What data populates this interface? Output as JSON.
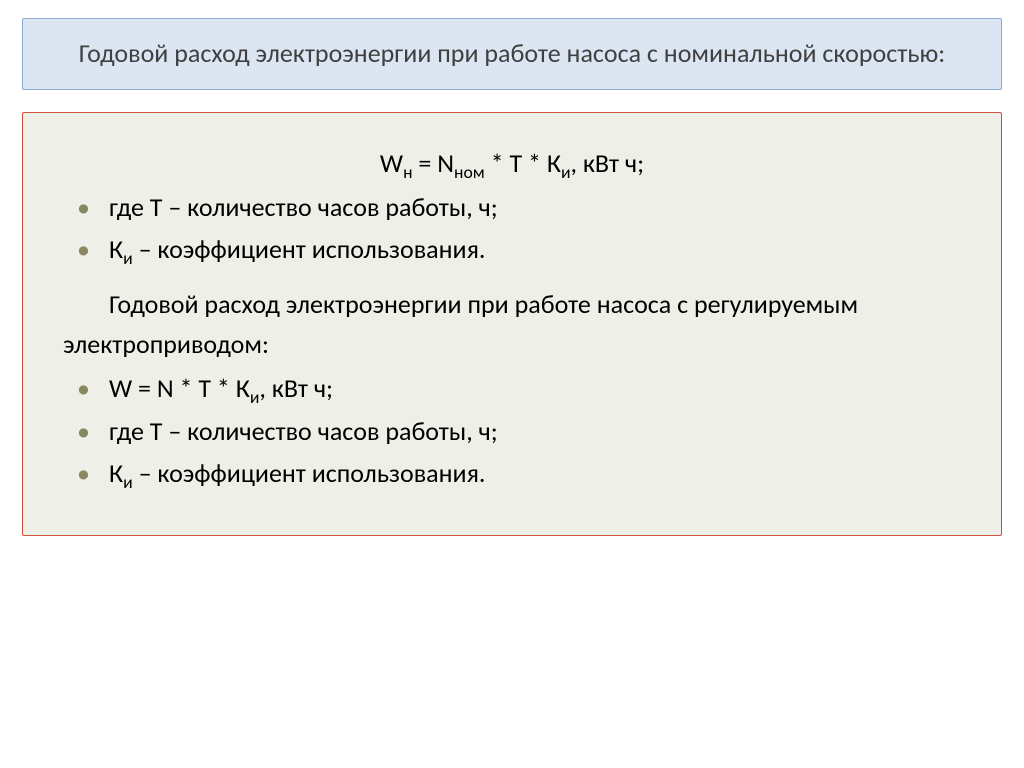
{
  "colors": {
    "page_bg": "#ffffff",
    "title_bg": "#dce6f2",
    "title_border": "#8faad2",
    "title_text": "#404040",
    "body_bg": "#eeefe7",
    "body_border": "#d05040",
    "body_text": "#000000",
    "bullet": "#878860"
  },
  "typography": {
    "title_fontsize_pt": 20,
    "body_fontsize_pt": 20,
    "font_family": "Calibri"
  },
  "title": "Годовой расход электроэнергии при работе насоса с номинальной скоростью:",
  "body": {
    "formula1_html": "W<sub>н</sub> = N<sub>ном</sub> * Т * К<sub>и</sub>, кВт ч;",
    "bullets1": [
      "где Т – количество часов работы, ч;",
      "К<sub>и</sub> – коэффициент использования."
    ],
    "para": "Годовой расход электроэнергии при работе насоса с регулируемым электроприводом:",
    "bullets2": [
      "W = N * Т * К<sub>и</sub>, кВт ч;",
      "где Т – количество часов работы, ч;",
      "К<sub>и</sub> – коэффициент использования."
    ]
  }
}
